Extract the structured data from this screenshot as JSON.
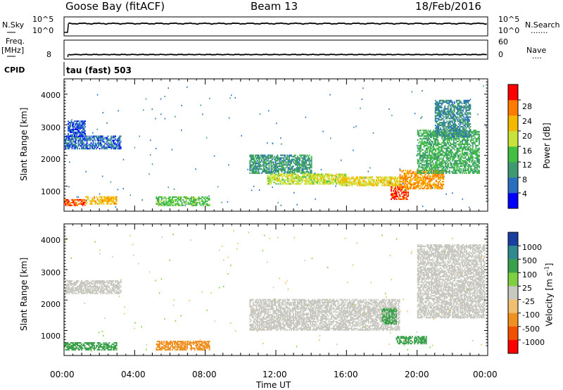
{
  "header": {
    "station": "Goose Bay (fitACF)",
    "beam": "Beam 13",
    "date": "18/Feb/2016"
  },
  "nsky_panel": {
    "left_label": "N.Sky",
    "left_ticks": [
      "10^5",
      "10^0"
    ],
    "right_ticks": [
      "10^5",
      "10^0"
    ],
    "right_label": "N.Search",
    "right_dots": "·······"
  },
  "freq_panel": {
    "left_label_1": "Freq.",
    "left_label_2": "[MHz]",
    "left_ticks": [
      "8"
    ],
    "right_ticks": [
      "60",
      "0"
    ],
    "right_label": "Nave",
    "right_dots": "····",
    "cpid_label": "CPID",
    "cpid_text": "tau (fast) 503"
  },
  "axes": {
    "y_label": "Slant Range [km]",
    "y_ticks": [
      "1000",
      "2000",
      "3000",
      "4000"
    ],
    "x_ticks": [
      "00:00",
      "04:00",
      "08:00",
      "12:00",
      "16:00",
      "20:00",
      "00:00"
    ],
    "x_label": "Time UT"
  },
  "power_colorbar": {
    "label": "Power [dB]",
    "ticks": [
      "4",
      "8",
      "12",
      "16",
      "20",
      "24",
      "28"
    ],
    "colors": [
      "#0000ff",
      "#2a6fbf",
      "#3f9a72",
      "#43c043",
      "#c9e23a",
      "#f5b800",
      "#ff7a00",
      "#ff0000"
    ]
  },
  "velocity_colorbar": {
    "label": "Velocity [m s",
    "label_sup": "-1",
    "label_end": "]",
    "ticks": [
      "1000",
      "500",
      "100",
      "25",
      "-25",
      "-100",
      "-500",
      "-1000"
    ],
    "colors": [
      "#1a3fa0",
      "#2e8a8f",
      "#3aa04a",
      "#7fd040",
      "#c8c8c0",
      "#f0c070",
      "#f09020",
      "#f05000",
      "#ff0000"
    ]
  },
  "chart_data": [
    {
      "type": "line",
      "panel": "N.Sky / N.Search",
      "x_range_hours": [
        0,
        24
      ],
      "y_scale": "log",
      "ylim": [
        1,
        100000
      ],
      "series": [
        {
          "x": [
            0,
            0.2,
            0.25,
            2,
            4,
            6,
            8,
            9,
            10,
            12,
            14,
            16,
            18,
            20,
            22,
            24
          ],
          "y": [
            3,
            3,
            3000,
            3500,
            3200,
            3000,
            3400,
            4000,
            3100,
            3000,
            3200,
            3300,
            3000,
            3200,
            3400,
            3000
          ]
        }
      ]
    },
    {
      "type": "line",
      "panel": "Freq. / Nave",
      "x_range_hours": [
        0,
        24
      ],
      "ylim_nave": [
        0,
        60
      ],
      "series": [
        {
          "x": [
            0,
            0.2,
            0.25,
            4,
            8,
            12,
            16,
            20,
            24
          ],
          "y": [
            0,
            0,
            10,
            10,
            10,
            10,
            10,
            10,
            10
          ]
        }
      ]
    },
    {
      "type": "heatmap",
      "panel": "Power",
      "x_range_hours": [
        0,
        24
      ],
      "ylim": [
        180,
        4500
      ],
      "value_units": "dB",
      "regions": [
        {
          "t0": 0.0,
          "t1": 3.2,
          "r0": 2200,
          "r1": 2650,
          "value": 6
        },
        {
          "t0": 0.2,
          "t1": 1.2,
          "r0": 2600,
          "r1": 3100,
          "value": 5
        },
        {
          "t0": 0.0,
          "t1": 1.2,
          "r0": 350,
          "r1": 550,
          "value": 27
        },
        {
          "t0": 1.2,
          "t1": 3.0,
          "r0": 400,
          "r1": 650,
          "value": 22
        },
        {
          "t0": 5.2,
          "t1": 8.2,
          "r0": 350,
          "r1": 650,
          "value": 14
        },
        {
          "t0": 10.5,
          "t1": 14.0,
          "r0": 1400,
          "r1": 2000,
          "value": 10
        },
        {
          "t0": 11.5,
          "t1": 16.0,
          "r0": 1050,
          "r1": 1400,
          "value": 18
        },
        {
          "t0": 15.5,
          "t1": 19.0,
          "r0": 1000,
          "r1": 1300,
          "value": 20
        },
        {
          "t0": 18.5,
          "t1": 19.5,
          "r0": 550,
          "r1": 1000,
          "value": 28
        },
        {
          "t0": 19.0,
          "t1": 21.5,
          "r0": 900,
          "r1": 1500,
          "value": 24
        },
        {
          "t0": 20.0,
          "t1": 23.5,
          "r0": 1400,
          "r1": 2800,
          "value": 12
        },
        {
          "t0": 21.0,
          "t1": 23.0,
          "r0": 2600,
          "r1": 3800,
          "value": 9
        }
      ]
    },
    {
      "type": "heatmap",
      "panel": "Velocity",
      "x_range_hours": [
        0,
        24
      ],
      "ylim": [
        180,
        4500
      ],
      "value_units": "m s-1",
      "regions": [
        {
          "t0": 0.0,
          "t1": 3.2,
          "r0": 2200,
          "r1": 2650,
          "value": 0
        },
        {
          "t0": 0.0,
          "t1": 3.0,
          "r0": 350,
          "r1": 600,
          "value": 120
        },
        {
          "t0": 5.2,
          "t1": 8.2,
          "r0": 350,
          "r1": 650,
          "value": -200
        },
        {
          "t0": 10.5,
          "t1": 19.0,
          "r0": 1000,
          "r1": 2000,
          "value": 0
        },
        {
          "t0": 18.0,
          "t1": 18.8,
          "r0": 1200,
          "r1": 1700,
          "value": 300
        },
        {
          "t0": 18.8,
          "t1": 20.5,
          "r0": 550,
          "r1": 800,
          "value": 150
        },
        {
          "t0": 20.0,
          "t1": 23.8,
          "r0": 1400,
          "r1": 3800,
          "value": 0
        }
      ]
    }
  ]
}
